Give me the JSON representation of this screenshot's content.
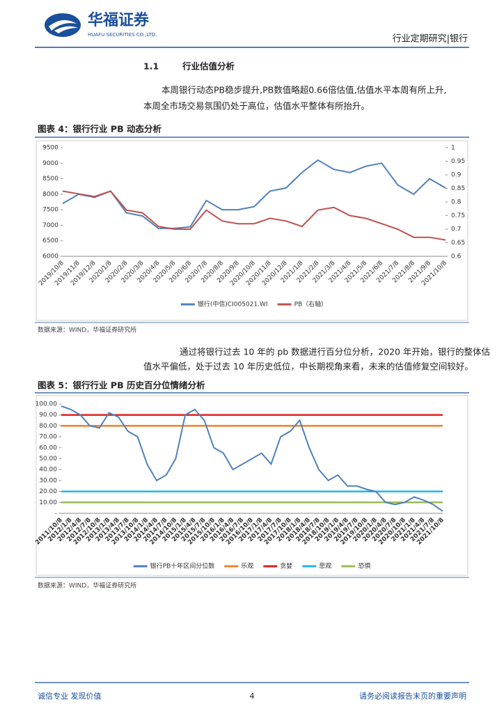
{
  "header": {
    "logo": "华福证券",
    "logo_en": "HUAFU SECURITIES CO.,LTD.",
    "right": "行业定期研究|银行"
  },
  "section": {
    "number": "1.1",
    "title": "行业估值分析"
  },
  "paragraphs": [
    [
      "本周银行动态PB稳步提升,PB数值略超0.66倍估值,估值水平本周有所上升,",
      "本周全市场交易氛围仍处于高位，估值水平整体有所抬升。"
    ],
    [
      "通过将银行过去 10 年的 pb 数据进行百分位分析，2020 年开始，银行的整体估",
      "值水平偏低，处于过去 10 年历史低位，中长期视角来看，未来的估值修复空间较好。"
    ]
  ],
  "charts": [
    {
      "type": "line",
      "title": "图表 4：银行行业 PB 动态分析",
      "source": "数据来源：WIND，华福证券研究所",
      "categories": [
        "2019/10/8",
        "2019/11/8",
        "2019/12/8",
        "2020/1/8",
        "2020/2/8",
        "2020/3/8",
        "2020/4/8",
        "2020/5/8",
        "2020/6/8",
        "2020/7/8",
        "2020/8/8",
        "2020/9/8",
        "2020/10/8",
        "2020/11/8",
        "2020/12/8",
        "2021/1/8",
        "2021/2/8",
        "2021/3/8",
        "2021/4/8",
        "2021/5/8",
        "2021/6/8",
        "2021/7/8",
        "2021/8/8",
        "2021/9/8",
        "2021/10/8"
      ],
      "series": [
        {
          "name": "银行(中信)CI005021.WI",
          "color": "#4f81bd",
          "values": [
            7700,
            8000,
            7900,
            8100,
            7400,
            7300,
            6900,
            6900,
            6950,
            7800,
            7500,
            7500,
            7600,
            8100,
            8200,
            8700,
            9100,
            8800,
            8700,
            8900,
            9000,
            8300,
            8000,
            8500,
            8200
          ]
        },
        {
          "name": "PB（右轴）",
          "color": "#c0504d",
          "axis": "y2",
          "values": [
            0.84,
            0.83,
            0.82,
            0.84,
            0.77,
            0.76,
            0.71,
            0.7,
            0.7,
            0.77,
            0.73,
            0.72,
            0.72,
            0.74,
            0.73,
            0.71,
            0.77,
            0.78,
            0.75,
            0.74,
            0.72,
            0.7,
            0.67,
            0.67,
            0.66
          ]
        }
      ],
      "ylim": [
        6000,
        9500
      ],
      "yticks": [
        6000,
        6500,
        7000,
        7500,
        8000,
        8500,
        9000,
        9500
      ],
      "y2lim": [
        0.6,
        1
      ],
      "y2ticks": [
        0.6,
        0.65,
        0.7,
        0.75,
        0.8,
        0.85,
        0.9,
        0.95,
        1
      ]
    },
    {
      "type": "line",
      "title": "图表 5：银行行业 PB 历史百分位情绪分析",
      "source": "数据来源：WIND，华福证券研究所",
      "categories": [
        "2011/10/8",
        "2012/1/8",
        "2012/4/8",
        "2012/7/8",
        "2012/10/8",
        "2013/1/8",
        "2013/4/8",
        "2013/7/8",
        "2013/10/8",
        "2014/1/8",
        "2014/4/8",
        "2014/7/8",
        "2014/10/8",
        "2015/1/8",
        "2015/4/8",
        "2015/7/8",
        "2015/10/8",
        "2016/1/8",
        "2016/4/8",
        "2016/7/8",
        "2016/10/8",
        "2017/1/8",
        "2017/4/8",
        "2017/7/8",
        "2017/10/8",
        "2018/1/8",
        "2018/4/8",
        "2018/7/8",
        "2018/10/8",
        "2019/1/8",
        "2019/4/8",
        "2019/7/8",
        "2019/10/8",
        "2020/1/8",
        "2020/4/8",
        "2020/7/8",
        "2020/10/8",
        "2021/1/8",
        "2021/4/8",
        "2021/7/8",
        "2021/10/8"
      ],
      "series": [
        {
          "name": "银行PB十年区间分位数",
          "color": "#4f81bd",
          "values": [
            98,
            95,
            90,
            80,
            78,
            92,
            88,
            75,
            70,
            45,
            30,
            35,
            50,
            90,
            95,
            85,
            60,
            55,
            40,
            45,
            50,
            55,
            45,
            70,
            75,
            85,
            60,
            40,
            30,
            35,
            25,
            25,
            22,
            20,
            10,
            8,
            10,
            15,
            12,
            8,
            2
          ]
        }
      ],
      "hlines": [
        {
          "name": "乐观",
          "color": "#f07f25",
          "value": 80
        },
        {
          "name": "贪婪",
          "color": "#e02020",
          "value": 90
        },
        {
          "name": "悲观",
          "color": "#1fb4e8",
          "value": 20
        },
        {
          "name": "恐惧",
          "color": "#9bbb59",
          "value": 10
        }
      ],
      "ylim": [
        0,
        100
      ],
      "yticks": [
        {
          "value": 0,
          "label": "-"
        },
        {
          "value": 10,
          "label": "10.00"
        },
        {
          "value": 20,
          "label": "20.00"
        },
        {
          "value": 30,
          "label": "30.00"
        },
        {
          "value": 40,
          "label": "40.00"
        },
        {
          "value": 50,
          "label": "50.00"
        },
        {
          "value": 60,
          "label": "60.00"
        },
        {
          "value": 70,
          "label": "70.00"
        },
        {
          "value": 80,
          "label": "80.00"
        },
        {
          "value": 90,
          "label": "90.00"
        },
        {
          "value": 100,
          "label": "100.00"
        }
      ]
    }
  ],
  "footer": {
    "left": "诚信专业  发现价值",
    "page": "4",
    "right": "请务必阅读报告末页的重要声明"
  }
}
